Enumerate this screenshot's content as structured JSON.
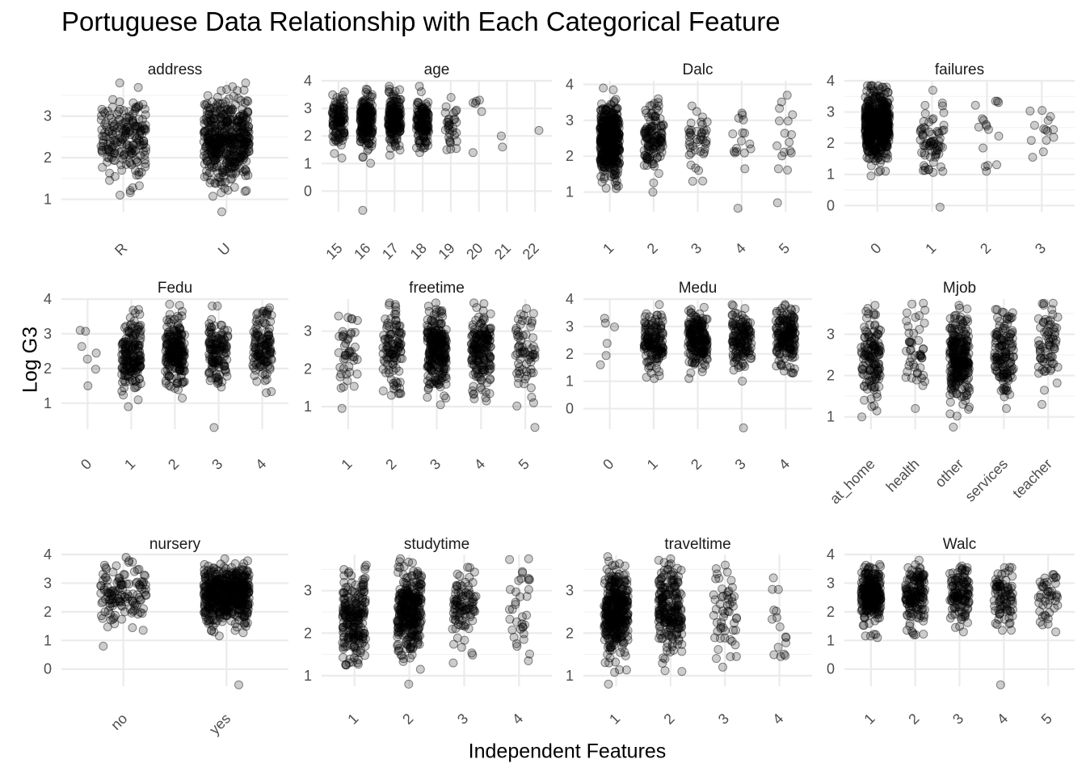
{
  "chart_data": {
    "type": "scatter",
    "title": "Portuguese Data Relationship with Each Categorical Feature",
    "xlabel": "Independent Features",
    "ylabel": "Log G3",
    "grid": true,
    "point_color": "#000000",
    "point_alpha": 0.2,
    "panels": [
      {
        "name": "address",
        "categories": [
          "R",
          "U"
        ],
        "ylim": [
          0.7,
          3.85
        ],
        "yticks": [
          1,
          2,
          3
        ],
        "groups": [
          {
            "category": "R",
            "n": 197,
            "min": 1.1,
            "max": 3.8,
            "center": 2.5,
            "spread": 0.5
          },
          {
            "category": "U",
            "n": 452,
            "min": 0.7,
            "max": 3.8,
            "center": 2.45,
            "spread": 0.5
          }
        ]
      },
      {
        "name": "age",
        "categories": [
          "15",
          "16",
          "17",
          "18",
          "19",
          "20",
          "21",
          "22"
        ],
        "ylim": [
          -0.75,
          4.0
        ],
        "yticks": [
          0,
          1,
          2,
          3,
          4
        ],
        "groups": [
          {
            "category": "15",
            "n": 112,
            "min": 1.2,
            "max": 3.6,
            "center": 2.6,
            "spread": 0.45
          },
          {
            "category": "16",
            "n": 177,
            "min": -0.7,
            "max": 3.7,
            "center": 2.5,
            "spread": 0.5
          },
          {
            "category": "17",
            "n": 179,
            "min": 1.3,
            "max": 3.8,
            "center": 2.6,
            "spread": 0.45
          },
          {
            "category": "18",
            "n": 140,
            "min": 1.4,
            "max": 3.8,
            "center": 2.5,
            "spread": 0.45
          },
          {
            "category": "19",
            "n": 32,
            "min": 1.5,
            "max": 3.4,
            "center": 2.4,
            "spread": 0.5
          },
          {
            "category": "20",
            "n": 6,
            "min": 1.4,
            "max": 3.3,
            "center": 2.6,
            "spread": 0.6
          },
          {
            "category": "21",
            "n": 2,
            "min": 1.6,
            "max": 2.0,
            "center": 1.8,
            "spread": 0.2
          },
          {
            "category": "22",
            "n": 1,
            "min": 2.2,
            "max": 2.2,
            "center": 2.2,
            "spread": 0.0
          }
        ]
      },
      {
        "name": "Dalc",
        "categories": [
          "1",
          "2",
          "3",
          "4",
          "5"
        ],
        "ylim": [
          0.45,
          4.1
        ],
        "yticks": [
          1,
          2,
          3,
          4
        ],
        "groups": [
          {
            "category": "1",
            "n": 451,
            "min": 1.1,
            "max": 3.9,
            "center": 2.5,
            "spread": 0.5
          },
          {
            "category": "2",
            "n": 121,
            "min": 1.0,
            "max": 3.6,
            "center": 2.5,
            "spread": 0.5
          },
          {
            "category": "3",
            "n": 43,
            "min": 1.3,
            "max": 3.4,
            "center": 2.3,
            "spread": 0.5
          },
          {
            "category": "4",
            "n": 17,
            "min": 0.55,
            "max": 3.2,
            "center": 2.4,
            "spread": 0.5
          },
          {
            "category": "5",
            "n": 17,
            "min": 0.7,
            "max": 3.7,
            "center": 2.5,
            "spread": 0.6
          }
        ]
      },
      {
        "name": "failures",
        "categories": [
          "0",
          "1",
          "2",
          "3"
        ],
        "ylim": [
          -0.2,
          4.0
        ],
        "yticks": [
          0,
          1,
          2,
          3,
          4
        ],
        "groups": [
          {
            "category": "0",
            "n": 549,
            "min": 0.95,
            "max": 3.85,
            "center": 2.6,
            "spread": 0.5
          },
          {
            "category": "1",
            "n": 70,
            "min": -0.05,
            "max": 3.7,
            "center": 2.2,
            "spread": 0.6
          },
          {
            "category": "2",
            "n": 16,
            "min": 1.1,
            "max": 3.35,
            "center": 2.4,
            "spread": 0.6
          },
          {
            "category": "3",
            "n": 14,
            "min": 1.55,
            "max": 3.05,
            "center": 2.4,
            "spread": 0.5
          }
        ]
      },
      {
        "name": "Fedu",
        "categories": [
          "0",
          "1",
          "2",
          "3",
          "4"
        ],
        "ylim": [
          0.25,
          4.0
        ],
        "yticks": [
          1,
          2,
          3,
          4
        ],
        "groups": [
          {
            "category": "0",
            "n": 7,
            "min": 1.5,
            "max": 3.1,
            "center": 2.5,
            "spread": 0.5
          },
          {
            "category": "1",
            "n": 174,
            "min": 0.9,
            "max": 3.7,
            "center": 2.4,
            "spread": 0.5
          },
          {
            "category": "2",
            "n": 209,
            "min": 1.15,
            "max": 3.85,
            "center": 2.5,
            "spread": 0.5
          },
          {
            "category": "3",
            "n": 131,
            "min": 0.3,
            "max": 3.8,
            "center": 2.5,
            "spread": 0.5
          },
          {
            "category": "4",
            "n": 128,
            "min": 1.3,
            "max": 3.75,
            "center": 2.6,
            "spread": 0.5
          }
        ]
      },
      {
        "name": "freetime",
        "categories": [
          "1",
          "2",
          "3",
          "4",
          "5"
        ],
        "ylim": [
          0.4,
          3.85
        ],
        "yticks": [
          1,
          2,
          3
        ],
        "groups": [
          {
            "category": "1",
            "n": 45,
            "min": 0.95,
            "max": 3.4,
            "center": 2.4,
            "spread": 0.5
          },
          {
            "category": "2",
            "n": 107,
            "min": 1.3,
            "max": 3.75,
            "center": 2.5,
            "spread": 0.5
          },
          {
            "category": "3",
            "n": 251,
            "min": 1.05,
            "max": 3.75,
            "center": 2.5,
            "spread": 0.5
          },
          {
            "category": "4",
            "n": 178,
            "min": 1.15,
            "max": 3.75,
            "center": 2.5,
            "spread": 0.5
          },
          {
            "category": "5",
            "n": 68,
            "min": 0.45,
            "max": 3.6,
            "center": 2.5,
            "spread": 0.5
          }
        ]
      },
      {
        "name": "Medu",
        "categories": [
          "0",
          "1",
          "2",
          "3",
          "4"
        ],
        "ylim": [
          -0.75,
          4.0
        ],
        "yticks": [
          0,
          1,
          2,
          3,
          4
        ],
        "groups": [
          {
            "category": "0",
            "n": 6,
            "min": 1.6,
            "max": 3.3,
            "center": 2.4,
            "spread": 0.6
          },
          {
            "category": "1",
            "n": 143,
            "min": 1.1,
            "max": 3.8,
            "center": 2.4,
            "spread": 0.5
          },
          {
            "category": "2",
            "n": 186,
            "min": 1.1,
            "max": 3.7,
            "center": 2.5,
            "spread": 0.5
          },
          {
            "category": "3",
            "n": 139,
            "min": -0.7,
            "max": 3.8,
            "center": 2.5,
            "spread": 0.5
          },
          {
            "category": "4",
            "n": 175,
            "min": 1.3,
            "max": 3.8,
            "center": 2.7,
            "spread": 0.5
          }
        ]
      },
      {
        "name": "Mjob",
        "categories": [
          "at_home",
          "health",
          "other",
          "services",
          "teacher"
        ],
        "ylim": [
          0.7,
          3.85
        ],
        "yticks": [
          1,
          2,
          3
        ],
        "groups": [
          {
            "category": "at_home",
            "n": 135,
            "min": 1.0,
            "max": 3.7,
            "center": 2.4,
            "spread": 0.5
          },
          {
            "category": "health",
            "n": 48,
            "min": 1.2,
            "max": 3.75,
            "center": 2.6,
            "spread": 0.6
          },
          {
            "category": "other",
            "n": 258,
            "min": 0.75,
            "max": 3.7,
            "center": 2.4,
            "spread": 0.5
          },
          {
            "category": "services",
            "n": 136,
            "min": 1.2,
            "max": 3.6,
            "center": 2.5,
            "spread": 0.5
          },
          {
            "category": "teacher",
            "n": 72,
            "min": 1.3,
            "max": 3.75,
            "center": 2.7,
            "spread": 0.5
          }
        ]
      },
      {
        "name": "nursery",
        "categories": [
          "no",
          "yes"
        ],
        "ylim": [
          -0.6,
          4.0
        ],
        "yticks": [
          0,
          1,
          2,
          3,
          4
        ],
        "groups": [
          {
            "category": "no",
            "n": 128,
            "min": 0.8,
            "max": 3.9,
            "center": 2.6,
            "spread": 0.5
          },
          {
            "category": "yes",
            "n": 521,
            "min": -0.55,
            "max": 3.85,
            "center": 2.6,
            "spread": 0.5
          }
        ]
      },
      {
        "name": "studytime",
        "categories": [
          "1",
          "2",
          "3",
          "4"
        ],
        "ylim": [
          0.75,
          3.85
        ],
        "yticks": [
          1,
          2,
          3
        ],
        "groups": [
          {
            "category": "1",
            "n": 212,
            "min": 1.25,
            "max": 3.6,
            "center": 2.4,
            "spread": 0.5
          },
          {
            "category": "2",
            "n": 305,
            "min": 0.8,
            "max": 3.75,
            "center": 2.5,
            "spread": 0.5
          },
          {
            "category": "3",
            "n": 97,
            "min": 1.3,
            "max": 3.55,
            "center": 2.6,
            "spread": 0.5
          },
          {
            "category": "4",
            "n": 35,
            "min": 1.35,
            "max": 3.75,
            "center": 2.6,
            "spread": 0.6
          }
        ]
      },
      {
        "name": "traveltime",
        "categories": [
          "1",
          "2",
          "3",
          "4"
        ],
        "ylim": [
          0.75,
          3.85
        ],
        "yticks": [
          1,
          2,
          3
        ],
        "groups": [
          {
            "category": "1",
            "n": 366,
            "min": 0.8,
            "max": 3.8,
            "center": 2.5,
            "spread": 0.5
          },
          {
            "category": "2",
            "n": 213,
            "min": 1.1,
            "max": 3.75,
            "center": 2.5,
            "spread": 0.5
          },
          {
            "category": "3",
            "n": 54,
            "min": 1.2,
            "max": 3.6,
            "center": 2.5,
            "spread": 0.5
          },
          {
            "category": "4",
            "n": 16,
            "min": 1.45,
            "max": 3.3,
            "center": 2.3,
            "spread": 0.5
          }
        ]
      },
      {
        "name": "Walc",
        "categories": [
          "1",
          "2",
          "3",
          "4",
          "5"
        ],
        "ylim": [
          -0.6,
          4.0
        ],
        "yticks": [
          0,
          1,
          2,
          3,
          4
        ],
        "groups": [
          {
            "category": "1",
            "n": 247,
            "min": 1.1,
            "max": 3.65,
            "center": 2.6,
            "spread": 0.5
          },
          {
            "category": "2",
            "n": 150,
            "min": 1.2,
            "max": 3.8,
            "center": 2.6,
            "spread": 0.5
          },
          {
            "category": "3",
            "n": 120,
            "min": 1.3,
            "max": 3.6,
            "center": 2.6,
            "spread": 0.5
          },
          {
            "category": "4",
            "n": 87,
            "min": -0.55,
            "max": 3.55,
            "center": 2.5,
            "spread": 0.5
          },
          {
            "category": "5",
            "n": 45,
            "min": 1.3,
            "max": 3.3,
            "center": 2.5,
            "spread": 0.5
          }
        ]
      }
    ]
  }
}
